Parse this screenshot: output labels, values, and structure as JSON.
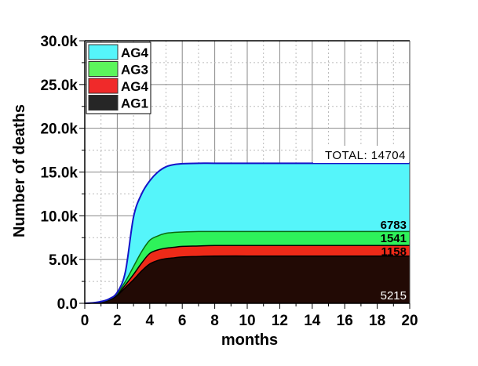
{
  "chart_data": {
    "type": "area",
    "stacked": true,
    "title": "",
    "xlabel": "months",
    "ylabel": "Number of deaths",
    "xlim": [
      0,
      20
    ],
    "ylim": [
      0,
      30
    ],
    "y_unit": "thousands",
    "grid": true,
    "legend_position": "top-left",
    "x_ticks": [
      "0",
      "2",
      "4",
      "6",
      "8",
      "10",
      "12",
      "14",
      "16",
      "18",
      "20"
    ],
    "y_ticks": [
      "0.0",
      "5.0k",
      "10.0k",
      "15.0k",
      "20.0k",
      "25.0k",
      "30.0k"
    ],
    "x": [
      0,
      0.5,
      1,
      1.5,
      2,
      2.5,
      3,
      3.5,
      4,
      4.5,
      5,
      5.5,
      6,
      7,
      8,
      10,
      12,
      14,
      16,
      18,
      20
    ],
    "series": [
      {
        "name": "AG1",
        "color": "#220a05",
        "line": "#000000",
        "values": [
          0,
          0.05,
          0.15,
          0.35,
          0.9,
          1.8,
          2.7,
          3.7,
          4.5,
          4.9,
          5.1,
          5.2,
          5.3,
          5.35,
          5.4,
          5.4,
          5.4,
          5.4,
          5.4,
          5.4,
          5.4
        ]
      },
      {
        "name": "AG4",
        "color": "#ee2a18",
        "line": "#000000",
        "values": [
          0,
          0,
          0.01,
          0.05,
          0.1,
          0.3,
          0.6,
          0.9,
          1.2,
          1.2,
          1.2,
          1.2,
          1.2,
          1.2,
          1.2,
          1.2,
          1.2,
          1.2,
          1.2,
          1.2,
          1.2
        ]
      },
      {
        "name": "AG3",
        "color": "#2ef25a",
        "line": "#0b6a10",
        "values": [
          0,
          0,
          0.01,
          0.05,
          0.1,
          0.4,
          0.9,
          1.3,
          1.5,
          1.6,
          1.7,
          1.7,
          1.65,
          1.65,
          1.6,
          1.6,
          1.6,
          1.6,
          1.6,
          1.6,
          1.6
        ]
      },
      {
        "name": "AG4",
        "color": "#55f5fa",
        "line": "#1515c8",
        "values": [
          0,
          0.01,
          0.03,
          0.05,
          0.15,
          1.1,
          5.65,
          6.6,
          6.8,
          7.3,
          7.6,
          7.75,
          7.8,
          7.8,
          7.8,
          7.8,
          7.8,
          7.8,
          7.8,
          7.8,
          7.8
        ]
      }
    ],
    "legend": [
      {
        "label": "AG4",
        "color": "#55f5fa"
      },
      {
        "label": "AG3",
        "color": "#5cf55c"
      },
      {
        "label": "AG4",
        "color": "#f02a2a"
      },
      {
        "label": "AG1",
        "color": "#262626"
      }
    ],
    "annotations": {
      "total": "TOTAL: 14704",
      "ag4_top": "6783",
      "ag3": "1541",
      "ag4": "1158",
      "ag1": "5215"
    }
  }
}
